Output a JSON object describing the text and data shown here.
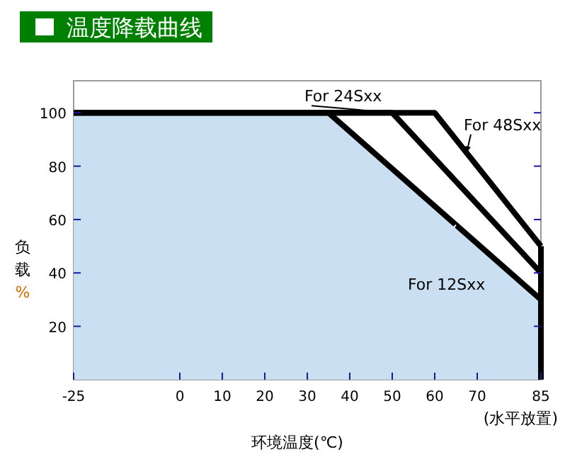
{
  "chart_data": {
    "type": "line",
    "title": "温度降载曲线",
    "xlabel": "环境温度(℃)",
    "ylabel": "负载%",
    "series": [
      {
        "name": "For 12Sxx",
        "type": "area",
        "color": "#cadff2",
        "x": [
          -25,
          35,
          85
        ],
        "values": [
          100,
          100,
          30
        ]
      },
      {
        "name": "For 24Sxx",
        "color": "#000000",
        "x": [
          -25,
          50,
          85
        ],
        "values": [
          100,
          100,
          40
        ]
      },
      {
        "name": "For 48Sxx",
        "color": "#000000",
        "x": [
          -25,
          60,
          85
        ],
        "values": [
          100,
          100,
          50
        ]
      }
    ],
    "ref_lines": [
      {
        "axis": "x",
        "value": 85,
        "color": "#000000"
      }
    ],
    "xlim": [
      -25,
      85
    ],
    "xticks": [
      -25,
      0,
      10,
      20,
      30,
      40,
      50,
      60,
      70,
      85
    ],
    "ylim": [
      0,
      112
    ],
    "yticks": [
      20,
      40,
      60,
      80,
      100
    ],
    "annotations": [
      "(水平放置)"
    ],
    "grid": false,
    "legend": "right",
    "line_style": "solid",
    "marker": "none"
  }
}
